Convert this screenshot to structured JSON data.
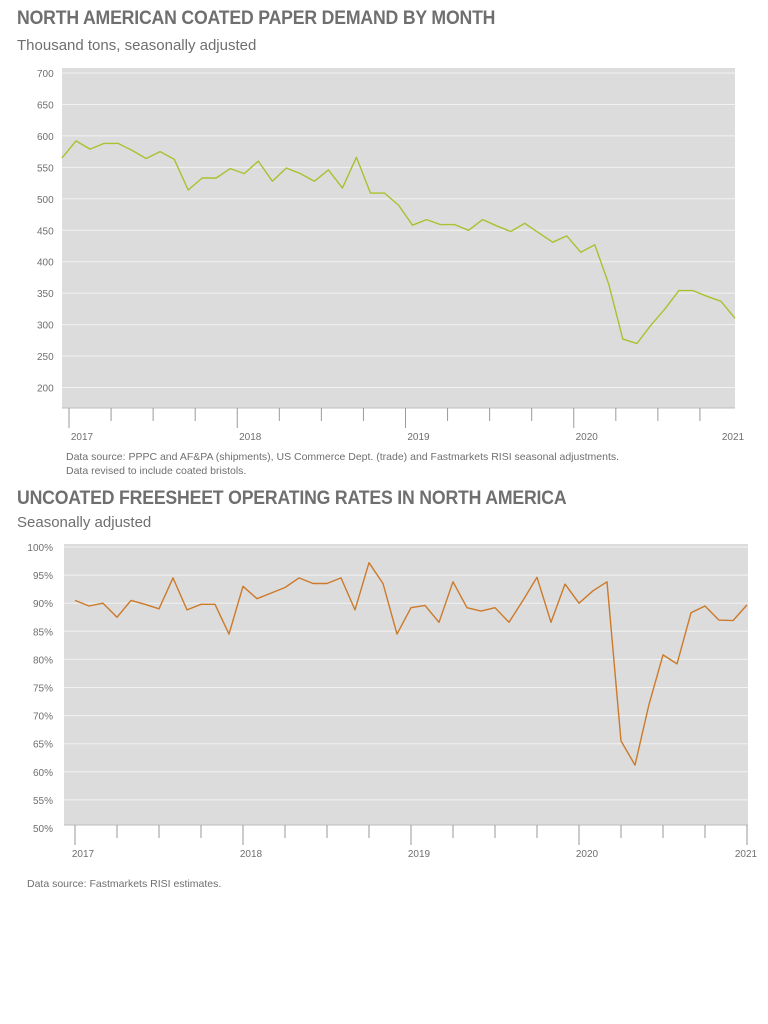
{
  "chart_data": [
    {
      "type": "line",
      "title": "NORTH AMERICAN COATED PAPER DEMAND BY MONTH",
      "subtitle": "Thousand tons, seasonally adjusted",
      "color": "#a9c12f",
      "ylim": [
        200,
        700
      ],
      "y_ticks": [
        200,
        250,
        300,
        350,
        400,
        450,
        500,
        550,
        600,
        650,
        700
      ],
      "y_tick_labels": [
        "200",
        "250",
        "300",
        "350",
        "400",
        "450",
        "500",
        "550",
        "600",
        "650",
        "700"
      ],
      "x_tick_labels": [
        "2017",
        "2018",
        "2019",
        "2020",
        "2021"
      ],
      "x_start": "2017-01",
      "grid": true,
      "series": [
        {
          "values": [
            565,
            592,
            579,
            588,
            588,
            577,
            564,
            575,
            563,
            514,
            533,
            533,
            548,
            540,
            560,
            528,
            549,
            540,
            528,
            546,
            517,
            566,
            509,
            509,
            490,
            458,
            467,
            459,
            459,
            450,
            467,
            457,
            448,
            461,
            446,
            431,
            441,
            415,
            427,
            364,
            277,
            270,
            299,
            325,
            354,
            354,
            345,
            337,
            310
          ]
        }
      ],
      "notes": [
        "Data source: PPPC and AF&PA (shipments), US Commerce Dept. (trade) and Fastmarkets RISI seasonal adjustments.",
        "Data revised to include coated bristols."
      ]
    },
    {
      "type": "line",
      "title": "UNCOATED FREESHEET OPERATING RATES IN NORTH AMERICA",
      "subtitle": "Seasonally adjusted",
      "color": "#cc7a2a",
      "ylim": [
        50,
        100
      ],
      "y_ticks": [
        50,
        55,
        60,
        65,
        70,
        75,
        80,
        85,
        90,
        95,
        100
      ],
      "y_tick_labels": [
        "50%",
        "55%",
        "60%",
        "65%",
        "70%",
        "75%",
        "80%",
        "85%",
        "90%",
        "95%",
        "100%"
      ],
      "x_tick_labels": [
        "2017",
        "2018",
        "2019",
        "2020",
        "2021"
      ],
      "x_start": "2017-01",
      "grid": true,
      "series": [
        {
          "values": [
            90.5,
            89.5,
            90.0,
            87.5,
            90.5,
            89.8,
            89.0,
            94.5,
            88.8,
            89.8,
            89.8,
            84.5,
            93.0,
            90.8,
            91.8,
            92.8,
            94.5,
            93.5,
            93.5,
            94.5,
            88.8,
            97.2,
            93.5,
            84.5,
            89.2,
            89.6,
            86.6,
            93.8,
            89.2,
            88.6,
            89.2,
            86.6,
            90.5,
            94.6,
            86.6,
            93.4,
            90.0,
            92.2,
            93.8,
            65.5,
            61.2,
            72.0,
            80.8,
            79.2,
            88.3,
            89.5,
            87.0,
            86.9,
            89.7
          ]
        }
      ],
      "notes": [
        "Data source: Fastmarkets RISI estimates."
      ]
    }
  ]
}
